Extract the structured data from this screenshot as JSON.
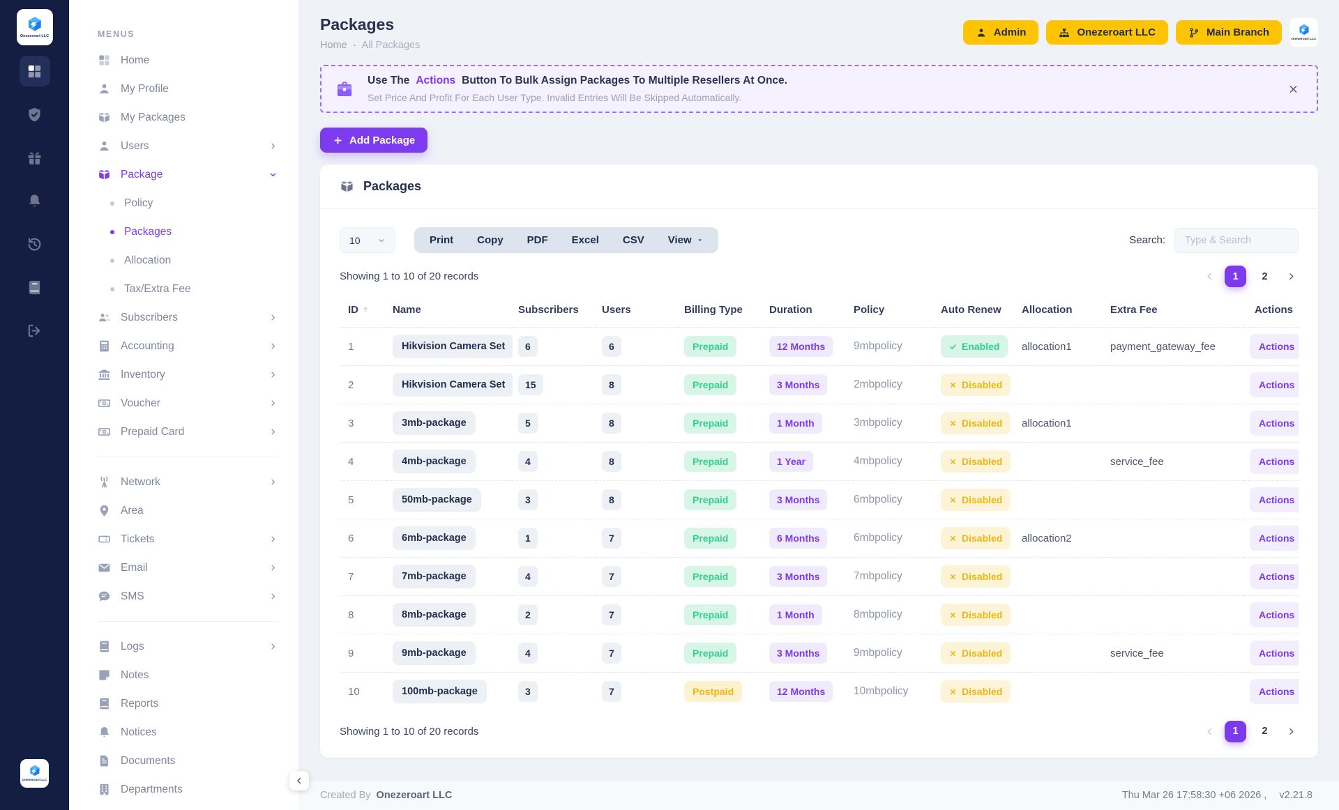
{
  "brand": {
    "name": "Onezeroart LLC"
  },
  "colors": {
    "accent_purple": "#7c3aed",
    "brand_yellow": "#ffc400",
    "sidebar_navy": "#131e42",
    "success_green": "#33cf8f",
    "warning_amber": "#eeb611"
  },
  "rail": {
    "items": [
      {
        "icon": "grid",
        "active": true
      },
      {
        "icon": "shield-check",
        "active": false
      },
      {
        "icon": "gift",
        "active": false
      },
      {
        "icon": "bell",
        "active": false
      },
      {
        "icon": "history",
        "active": false
      },
      {
        "icon": "book",
        "active": false
      },
      {
        "icon": "sign-out",
        "active": false
      }
    ]
  },
  "menu": {
    "heading": "MENUS",
    "items": [
      {
        "label": "Home",
        "icon": "grid"
      },
      {
        "label": "My Profile",
        "icon": "user"
      },
      {
        "label": "My Packages",
        "icon": "box"
      },
      {
        "label": "Users",
        "icon": "user",
        "chevron": true
      },
      {
        "label": "Package",
        "icon": "box",
        "expanded": true,
        "active": true
      },
      {
        "label": "Policy",
        "sub": true
      },
      {
        "label": "Packages",
        "sub": true,
        "active": true
      },
      {
        "label": "Allocation",
        "sub": true
      },
      {
        "label": "Tax/Extra Fee",
        "sub": true
      },
      {
        "label": "Subscribers",
        "icon": "users",
        "chevron": true
      },
      {
        "label": "Accounting",
        "icon": "calculator",
        "chevron": true
      },
      {
        "label": "Inventory",
        "icon": "bank",
        "chevron": true
      },
      {
        "label": "Voucher",
        "icon": "money",
        "chevron": true
      },
      {
        "label": "Prepaid Card",
        "icon": "money",
        "chevron": true
      },
      {
        "divider": true
      },
      {
        "label": "Network",
        "icon": "tower",
        "chevron": true
      },
      {
        "label": "Area",
        "icon": "map-pin"
      },
      {
        "label": "Tickets",
        "icon": "ticket",
        "chevron": true
      },
      {
        "label": "Email",
        "icon": "envelope",
        "chevron": true
      },
      {
        "label": "SMS",
        "icon": "comment",
        "chevron": true
      },
      {
        "divider": true
      },
      {
        "label": "Logs",
        "icon": "book",
        "chevron": true
      },
      {
        "label": "Notes",
        "icon": "note"
      },
      {
        "label": "Reports",
        "icon": "report"
      },
      {
        "label": "Notices",
        "icon": "bell"
      },
      {
        "label": "Documents",
        "icon": "file"
      },
      {
        "label": "Departments",
        "icon": "building"
      }
    ]
  },
  "header": {
    "title": "Packages",
    "breadcrumb": {
      "home": "Home",
      "separator": "-",
      "current": "All Packages"
    },
    "buttons": [
      {
        "label": "Admin",
        "icon": "user"
      },
      {
        "label": "Onezeroart LLC",
        "icon": "sitemap"
      },
      {
        "label": "Main Branch",
        "icon": "branch"
      }
    ]
  },
  "banner": {
    "line1_prefix": "Use The",
    "line1_highlight": "Actions",
    "line1_suffix": "Button To Bulk Assign Packages To Multiple Resellers At Once.",
    "line2": "Set Price And Profit For Each User Type. Invalid Entries Will Be Skipped Automatically."
  },
  "add_package_label": "Add Package",
  "card": {
    "title": "Packages",
    "page_size": "10",
    "export_buttons": [
      "Print",
      "Copy",
      "PDF",
      "Excel",
      "CSV"
    ],
    "view_button": "View",
    "search_label": "Search:",
    "search_placeholder": "Type & Search",
    "showing_text": "Showing 1 to 10 of 20 records",
    "pagination": {
      "pages": [
        "1",
        "2"
      ],
      "active": "1"
    }
  },
  "table": {
    "columns": [
      "ID",
      "Name",
      "Subscribers",
      "Users",
      "Billing Type",
      "Duration",
      "Policy",
      "Auto Renew",
      "Allocation",
      "Extra Fee",
      "Actions"
    ],
    "actions_label": "Actions",
    "rows": [
      {
        "id": "1",
        "name": "Hikvision Camera Set",
        "subscribers": "6",
        "users": "6",
        "billing": "Prepaid",
        "duration": "12 Months",
        "policy": "9mbpolicy",
        "auto_renew": "Enabled",
        "allocation": "allocation1",
        "extra_fee": "payment_gateway_fee"
      },
      {
        "id": "2",
        "name": "Hikvision Camera Set",
        "subscribers": "15",
        "users": "8",
        "billing": "Prepaid",
        "duration": "3 Months",
        "policy": "2mbpolicy",
        "auto_renew": "Disabled",
        "allocation": "",
        "extra_fee": ""
      },
      {
        "id": "3",
        "name": "3mb-package",
        "subscribers": "5",
        "users": "8",
        "billing": "Prepaid",
        "duration": "1 Month",
        "policy": "3mbpolicy",
        "auto_renew": "Disabled",
        "allocation": "allocation1",
        "extra_fee": ""
      },
      {
        "id": "4",
        "name": "4mb-package",
        "subscribers": "4",
        "users": "8",
        "billing": "Prepaid",
        "duration": "1 Year",
        "policy": "4mbpolicy",
        "auto_renew": "Disabled",
        "allocation": "",
        "extra_fee": "service_fee"
      },
      {
        "id": "5",
        "name": "50mb-package",
        "subscribers": "3",
        "users": "8",
        "billing": "Prepaid",
        "duration": "3 Months",
        "policy": "6mbpolicy",
        "auto_renew": "Disabled",
        "allocation": "",
        "extra_fee": ""
      },
      {
        "id": "6",
        "name": "6mb-package",
        "subscribers": "1",
        "users": "7",
        "billing": "Prepaid",
        "duration": "6 Months",
        "policy": "6mbpolicy",
        "auto_renew": "Disabled",
        "allocation": "allocation2",
        "extra_fee": ""
      },
      {
        "id": "7",
        "name": "7mb-package",
        "subscribers": "4",
        "users": "7",
        "billing": "Prepaid",
        "duration": "3 Months",
        "policy": "7mbpolicy",
        "auto_renew": "Disabled",
        "allocation": "",
        "extra_fee": ""
      },
      {
        "id": "8",
        "name": "8mb-package",
        "subscribers": "2",
        "users": "7",
        "billing": "Prepaid",
        "duration": "1 Month",
        "policy": "8mbpolicy",
        "auto_renew": "Disabled",
        "allocation": "",
        "extra_fee": ""
      },
      {
        "id": "9",
        "name": "9mb-package",
        "subscribers": "4",
        "users": "7",
        "billing": "Prepaid",
        "duration": "3 Months",
        "policy": "9mbpolicy",
        "auto_renew": "Disabled",
        "allocation": "",
        "extra_fee": "service_fee"
      },
      {
        "id": "10",
        "name": "100mb-package",
        "subscribers": "3",
        "users": "7",
        "billing": "Postpaid",
        "duration": "12 Months",
        "policy": "10mbpolicy",
        "auto_renew": "Disabled",
        "allocation": "",
        "extra_fee": ""
      }
    ]
  },
  "footer": {
    "created_by_label": "Created By",
    "created_by": "Onezeroart LLC",
    "timestamp": "Thu Mar 26 17:58:30 +06 2026 ,",
    "version": "v2.21.8"
  }
}
